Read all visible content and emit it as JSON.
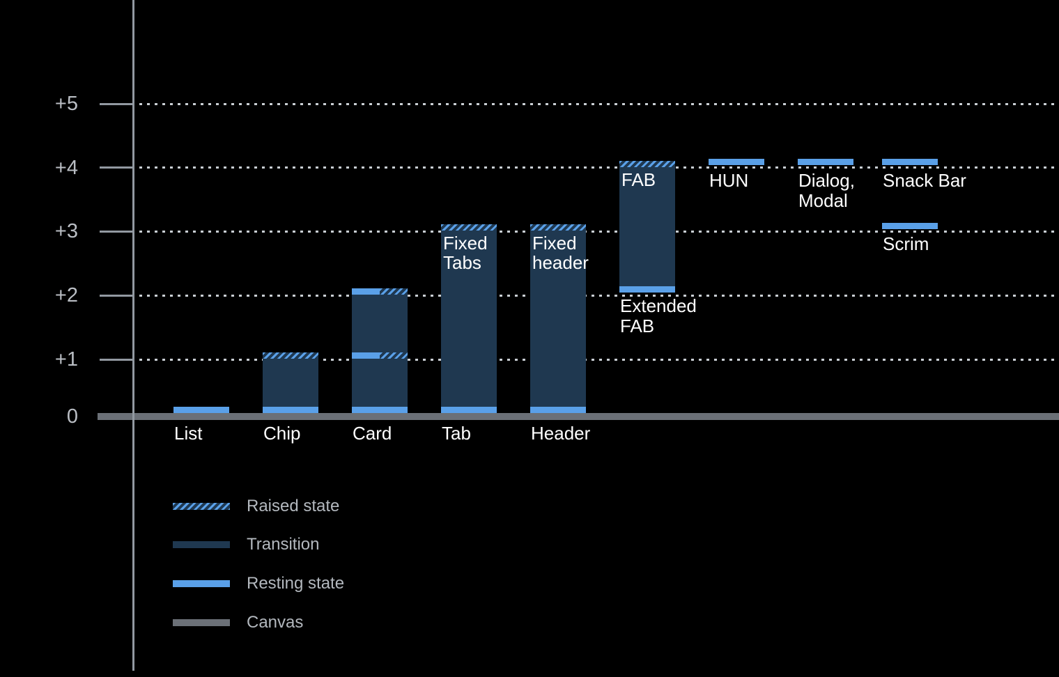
{
  "chart_data": {
    "type": "bar",
    "title": "",
    "subtitle": "",
    "xlabel": "",
    "ylabel": "",
    "y_axis": {
      "tick_labels": [
        "+5",
        "+4",
        "+3",
        "+2",
        "+1",
        "0"
      ],
      "tick_values": [
        5,
        4,
        3,
        2,
        1,
        0
      ],
      "range": [
        0,
        5.5
      ],
      "grid": "dotted"
    },
    "bars": [
      {
        "label": "List",
        "inner_label": "",
        "resting": 0,
        "raised": null,
        "transition": null
      },
      {
        "label": "Chip",
        "inner_label": "",
        "resting": 0,
        "raised": 1,
        "transition": [
          0,
          1
        ]
      },
      {
        "label": "Card",
        "inner_label": "",
        "resting": 0,
        "raised": 2,
        "transition": [
          0,
          2
        ],
        "intermediate_levels": [
          1,
          2
        ]
      },
      {
        "label": "Tab",
        "inner_label": "Fixed\nTabs",
        "resting": 0,
        "raised": 3,
        "transition": [
          0,
          3
        ]
      },
      {
        "label": "Header",
        "inner_label": "Fixed\nheader",
        "resting": 0,
        "raised": 3,
        "transition": [
          0,
          3
        ]
      },
      {
        "label": "Extended\nFAB",
        "inner_label": "FAB",
        "resting": 2,
        "raised": 4,
        "transition": [
          2,
          4
        ]
      },
      {
        "label": "HUN",
        "inner_label": "",
        "resting": 4,
        "raised": null,
        "transition": null
      },
      {
        "label": "Dialog,\nModal",
        "inner_label": "",
        "resting": 4,
        "raised": null,
        "transition": null
      },
      {
        "label": "Snack Bar",
        "inner_label": "",
        "resting": 4,
        "raised": null,
        "transition": null
      },
      {
        "label": "Scrim",
        "inner_label": "",
        "resting": 3,
        "raised": null,
        "transition": null
      }
    ],
    "legend": {
      "position": "bottom-left",
      "items": [
        {
          "label": "Raised state",
          "swatch": "raised"
        },
        {
          "label": "Transition",
          "swatch": "transition"
        },
        {
          "label": "Resting state",
          "swatch": "resting"
        },
        {
          "label": "Canvas",
          "swatch": "canvas"
        }
      ]
    },
    "colors": {
      "background": "#000000",
      "transition": "#1F3850",
      "resting": "#5AA0E8",
      "canvas": "#6B7077",
      "grid_dash": "#CACFD4",
      "axis": "#9299A1",
      "tick_label": "#BABEC4",
      "bar_label": "#FFFFFF",
      "legend_label": "#B3B8BE"
    }
  }
}
